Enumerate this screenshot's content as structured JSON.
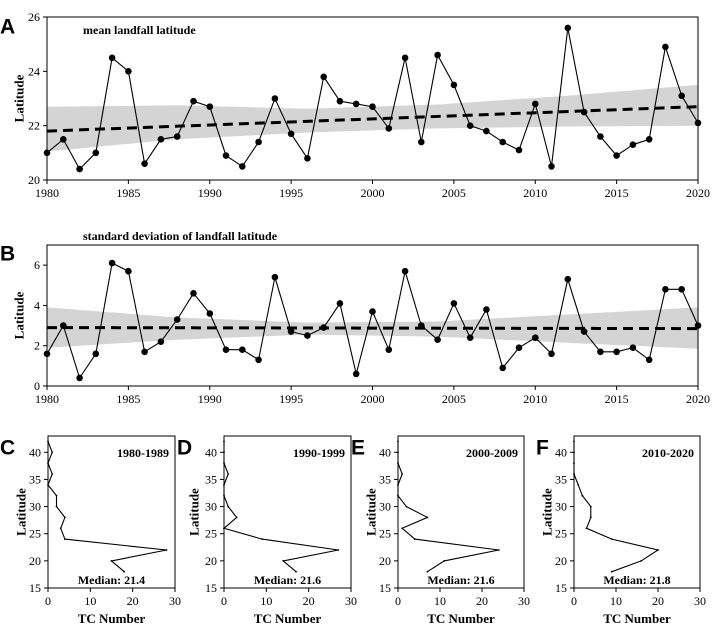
{
  "chart_data": [
    {
      "id": "A",
      "type": "line",
      "panel_letter": "A",
      "annotation": "mean landfall latitude",
      "ylabel": "Latitude",
      "xlabel": "",
      "xlim": [
        1980,
        2020
      ],
      "ylim": [
        20,
        26
      ],
      "xticks": [
        1980,
        1985,
        1990,
        1995,
        2000,
        2005,
        2010,
        2015,
        2020
      ],
      "yticks": [
        20,
        22,
        24,
        26
      ],
      "x": [
        1980,
        1981,
        1982,
        1983,
        1984,
        1985,
        1986,
        1987,
        1988,
        1989,
        1990,
        1991,
        1992,
        1993,
        1994,
        1995,
        1996,
        1997,
        1998,
        1999,
        2000,
        2001,
        2002,
        2003,
        2004,
        2005,
        2006,
        2007,
        2008,
        2009,
        2010,
        2011,
        2012,
        2013,
        2014,
        2015,
        2016,
        2017,
        2018,
        2019,
        2020
      ],
      "values": [
        21.0,
        21.5,
        20.4,
        21.0,
        24.5,
        24.0,
        20.6,
        21.5,
        21.6,
        22.9,
        22.7,
        20.9,
        20.5,
        21.4,
        23.0,
        21.7,
        20.8,
        23.8,
        22.9,
        22.8,
        22.7,
        21.9,
        24.5,
        21.4,
        24.6,
        23.5,
        22.0,
        21.8,
        21.4,
        21.1,
        22.8,
        20.5,
        25.6,
        22.5,
        21.6,
        20.9,
        21.3,
        21.5,
        24.9,
        23.1,
        22.1
      ],
      "trend": {
        "start": 21.8,
        "end": 22.7
      },
      "ci_lower": [
        21.05,
        21.5,
        21.75,
        21.9,
        21.97,
        22.0
      ],
      "ci_upper": [
        22.7,
        22.75,
        22.62,
        22.78,
        23.1,
        23.5
      ]
    },
    {
      "id": "B",
      "type": "line",
      "panel_letter": "B",
      "annotation": "standard deviation of landfall latitude",
      "ylabel": "Latitude",
      "xlabel": "",
      "xlim": [
        1980,
        2020
      ],
      "ylim": [
        0,
        7
      ],
      "xticks": [
        1980,
        1985,
        1990,
        1995,
        2000,
        2005,
        2010,
        2015,
        2020
      ],
      "yticks": [
        0,
        2,
        4,
        6
      ],
      "x": [
        1980,
        1981,
        1982,
        1983,
        1984,
        1985,
        1986,
        1987,
        1988,
        1989,
        1990,
        1991,
        1992,
        1993,
        1994,
        1995,
        1996,
        1997,
        1998,
        1999,
        2000,
        2001,
        2002,
        2003,
        2004,
        2005,
        2006,
        2007,
        2008,
        2009,
        2010,
        2011,
        2012,
        2013,
        2014,
        2015,
        2016,
        2017,
        2018,
        2019,
        2020
      ],
      "values": [
        1.6,
        3.0,
        0.4,
        1.6,
        6.1,
        5.7,
        1.7,
        2.2,
        3.3,
        4.6,
        3.6,
        1.8,
        1.8,
        1.3,
        5.4,
        2.7,
        2.5,
        2.9,
        4.1,
        0.6,
        3.7,
        1.8,
        5.7,
        3.0,
        2.3,
        4.1,
        2.4,
        3.8,
        0.9,
        1.9,
        2.4,
        1.6,
        5.3,
        2.7,
        1.7,
        1.7,
        1.9,
        1.3,
        4.8,
        4.8,
        3.0
      ],
      "trend": {
        "start": 2.9,
        "end": 2.85
      },
      "ci_lower": [
        1.9,
        2.3,
        2.55,
        2.45,
        2.15,
        1.85
      ],
      "ci_upper": [
        3.9,
        3.4,
        3.15,
        3.2,
        3.55,
        3.9
      ]
    },
    {
      "id": "C",
      "type": "line",
      "panel_letter": "C",
      "annotation": "1980-1989",
      "median_text": "Median: 21.4",
      "ylabel": "Latitude",
      "xlabel": "TC Number",
      "xlim": [
        0,
        30
      ],
      "ylim": [
        15,
        43
      ],
      "xticks": [
        0,
        10,
        20,
        30
      ],
      "yticks": [
        15,
        20,
        25,
        30,
        35,
        40
      ],
      "points": [
        [
          18,
          18
        ],
        [
          15,
          20
        ],
        [
          28,
          22
        ],
        [
          4,
          24
        ],
        [
          3,
          26
        ],
        [
          4,
          28
        ],
        [
          2,
          30
        ],
        [
          2,
          32
        ],
        [
          0,
          34
        ],
        [
          1,
          36
        ],
        [
          0,
          38
        ],
        [
          1,
          40
        ],
        [
          0,
          42
        ]
      ],
      "x": [
        18,
        15,
        28,
        4,
        3,
        4,
        2,
        2,
        0,
        1,
        0,
        1,
        0
      ],
      "values": [
        18,
        20,
        22,
        24,
        26,
        28,
        30,
        32,
        34,
        36,
        38,
        40,
        42
      ]
    },
    {
      "id": "D",
      "type": "line",
      "panel_letter": "D",
      "annotation": "1990-1999",
      "median_text": "Median: 21.6",
      "ylabel": "Latitude",
      "xlabel": "TC Number",
      "xlim": [
        0,
        30
      ],
      "ylim": [
        15,
        43
      ],
      "xticks": [
        0,
        10,
        20,
        30
      ],
      "yticks": [
        15,
        20,
        25,
        30,
        35,
        40
      ],
      "points": [
        [
          17,
          18
        ],
        [
          14,
          20
        ],
        [
          27,
          22
        ],
        [
          9,
          24
        ],
        [
          0,
          26
        ],
        [
          3,
          28
        ],
        [
          1,
          30
        ],
        [
          0,
          32
        ],
        [
          0,
          34
        ],
        [
          1,
          36
        ],
        [
          0,
          38
        ],
        [
          0,
          40
        ],
        [
          0,
          42
        ]
      ],
      "x": [
        17,
        14,
        27,
        9,
        0,
        3,
        1,
        0,
        0,
        1,
        0,
        0,
        0
      ],
      "values": [
        18,
        20,
        22,
        24,
        26,
        28,
        30,
        32,
        34,
        36,
        38,
        40,
        42
      ]
    },
    {
      "id": "E",
      "type": "line",
      "panel_letter": "E",
      "annotation": "2000-2009",
      "median_text": "Median: 21.6",
      "ylabel": "Latitude",
      "xlabel": "TC Number",
      "xlim": [
        0,
        30
      ],
      "ylim": [
        15,
        43
      ],
      "xticks": [
        0,
        10,
        20,
        30
      ],
      "yticks": [
        15,
        20,
        25,
        30,
        35,
        40
      ],
      "points": [
        [
          7,
          18
        ],
        [
          11,
          20
        ],
        [
          24,
          22
        ],
        [
          4,
          24
        ],
        [
          1,
          26
        ],
        [
          7,
          28
        ],
        [
          2,
          30
        ],
        [
          0,
          32
        ],
        [
          0,
          34
        ],
        [
          1,
          36
        ],
        [
          0,
          38
        ],
        [
          0,
          40
        ],
        [
          0,
          42
        ]
      ],
      "x": [
        7,
        11,
        24,
        4,
        1,
        7,
        2,
        0,
        0,
        1,
        0,
        0,
        0
      ],
      "values": [
        18,
        20,
        22,
        24,
        26,
        28,
        30,
        32,
        34,
        36,
        38,
        40,
        42
      ]
    },
    {
      "id": "F",
      "type": "line",
      "panel_letter": "F",
      "annotation": "2010-2020",
      "median_text": "Median: 21.8",
      "ylabel": "Latitude",
      "xlabel": "TC Number",
      "xlim": [
        0,
        30
      ],
      "ylim": [
        15,
        43
      ],
      "xticks": [
        0,
        10,
        20,
        30
      ],
      "yticks": [
        15,
        20,
        25,
        30,
        35,
        40
      ],
      "points": [
        [
          9,
          18
        ],
        [
          16,
          20
        ],
        [
          20,
          22
        ],
        [
          9,
          24
        ],
        [
          3,
          26
        ],
        [
          4,
          28
        ],
        [
          4,
          30
        ],
        [
          2,
          32
        ],
        [
          1,
          34
        ],
        [
          0,
          36
        ],
        [
          0,
          38
        ],
        [
          0,
          40
        ],
        [
          0,
          42
        ]
      ],
      "x": [
        9,
        16,
        20,
        9,
        3,
        4,
        4,
        2,
        1,
        0,
        0,
        0,
        0
      ],
      "values": [
        18,
        20,
        22,
        24,
        26,
        28,
        30,
        32,
        34,
        36,
        38,
        40,
        42
      ]
    }
  ]
}
